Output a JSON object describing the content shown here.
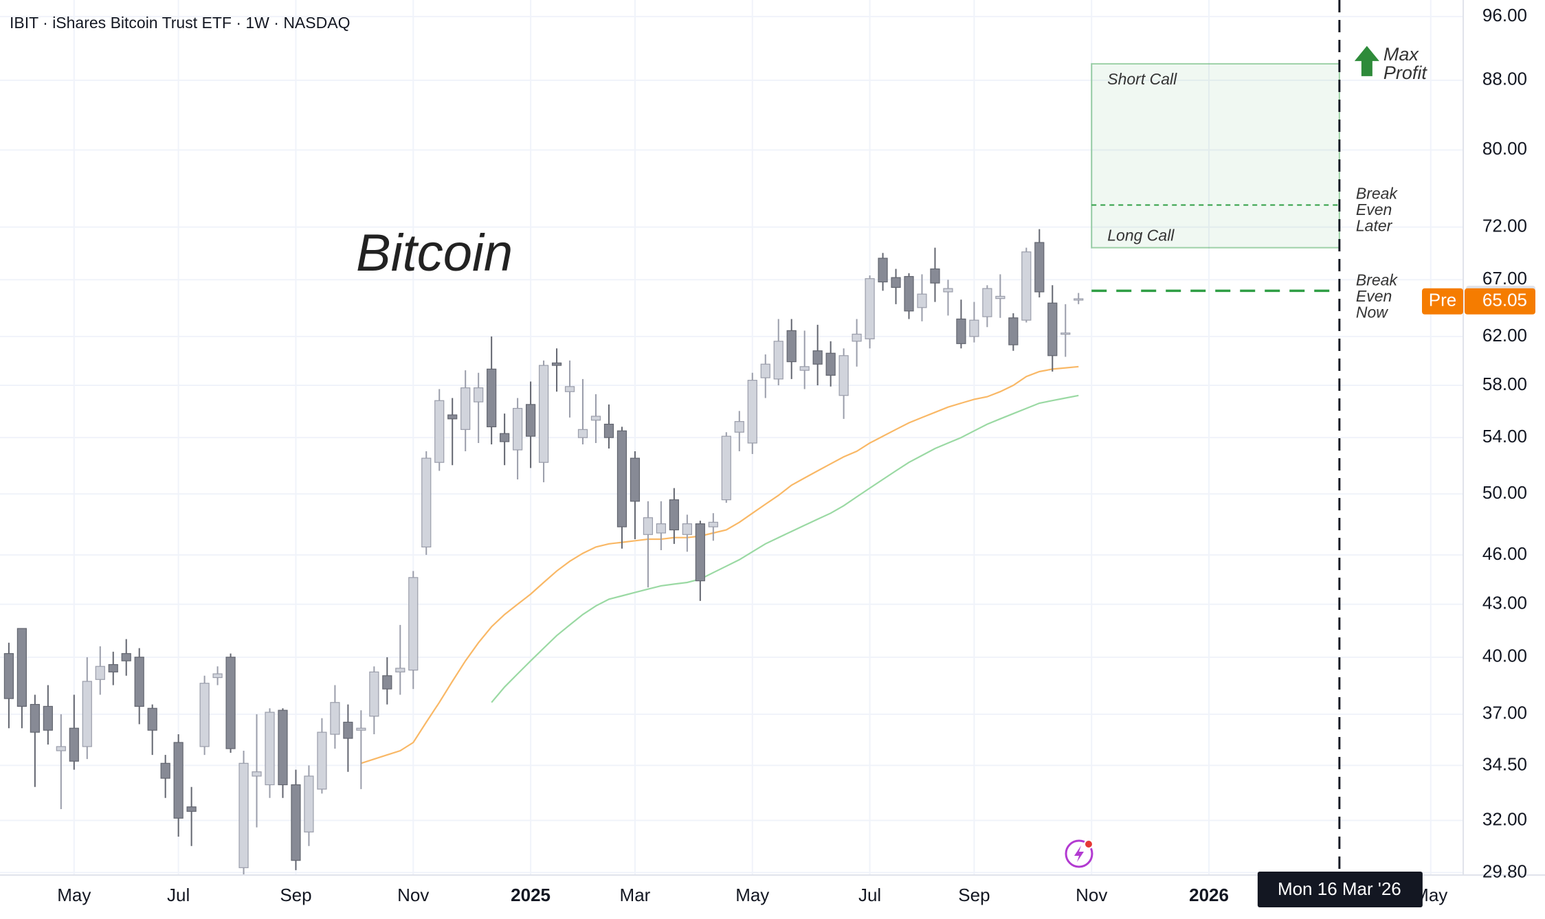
{
  "chart_data": {
    "type": "candlestick",
    "title": "IBIT · iShares Bitcoin Trust ETF · 1W · NASDAQ",
    "annotation": "Bitcoin",
    "log_scale": true,
    "grid": true,
    "up_color": "#d1d4dc",
    "down_color": "#878a95",
    "categories": [
      null,
      null,
      null,
      null,
      null,
      "May",
      null,
      null,
      null,
      null,
      null,
      null,
      null,
      "Jul",
      null,
      null,
      null,
      null,
      null,
      null,
      null,
      null,
      "Sep",
      null,
      null,
      null,
      null,
      null,
      null,
      null,
      null,
      "Nov",
      null,
      null,
      null,
      null,
      null,
      null,
      null,
      null,
      "2025",
      null,
      null,
      null,
      null,
      null,
      null,
      null,
      "Mar",
      null,
      null,
      null,
      null,
      null,
      null,
      null,
      null,
      "May",
      null,
      null,
      null,
      null,
      null,
      null,
      null,
      null,
      "Jul",
      null,
      null,
      null,
      null,
      null,
      null,
      null,
      "Sep",
      null,
      null,
      null,
      null,
      null,
      null,
      null,
      null,
      "Nov",
      null,
      null,
      null,
      null,
      null,
      null,
      null,
      null,
      "2026",
      null,
      null,
      null,
      null,
      null,
      null,
      null,
      null,
      null,
      null,
      null,
      null,
      null,
      null,
      null,
      null,
      "May",
      null,
      null
    ],
    "open": [
      40.2,
      41.6,
      37.5,
      37.4,
      35.2,
      36.3,
      35.4,
      38.8,
      39.6,
      40.2,
      40.0,
      37.3,
      34.6,
      35.6,
      32.6,
      35.4,
      38.9,
      40.0,
      30.0,
      34.0,
      33.6,
      37.2,
      33.6,
      31.5,
      33.4,
      36.0,
      36.6,
      36.2,
      36.9,
      39.0,
      39.2,
      39.3,
      46.5,
      52.2,
      55.7,
      54.6,
      56.7,
      59.3,
      54.3,
      53.1,
      56.5,
      52.2,
      59.8,
      57.5,
      54.0,
      55.3,
      55.0,
      54.5,
      52.5,
      47.3,
      47.4,
      49.6,
      47.3,
      48.0,
      47.8,
      49.6,
      54.4,
      53.6,
      58.6,
      58.5,
      62.5,
      59.2,
      60.8,
      60.6,
      57.2,
      61.6,
      61.8,
      69.0,
      67.2,
      67.3,
      64.5,
      68.0,
      65.9,
      63.5,
      62.0,
      63.7,
      65.3,
      63.6,
      63.4,
      70.5,
      64.9,
      62.2,
      65.2,
      null,
      null,
      null,
      null,
      null,
      null,
      null,
      null,
      null,
      null,
      null,
      null,
      null,
      null,
      null,
      null,
      null,
      null,
      null,
      null,
      null,
      null,
      null,
      null,
      null,
      null,
      null,
      null,
      null
    ],
    "high": [
      40.8,
      41.6,
      38.0,
      38.5,
      37.0,
      38.0,
      40.0,
      40.6,
      40.3,
      41.0,
      40.5,
      37.5,
      35.0,
      36.0,
      33.5,
      39.0,
      39.5,
      40.2,
      35.2,
      37.0,
      37.3,
      37.3,
      34.3,
      34.5,
      36.8,
      38.5,
      37.5,
      37.2,
      39.5,
      40.0,
      41.8,
      45.0,
      53.0,
      57.7,
      57.0,
      59.2,
      59.0,
      62.0,
      55.8,
      57.0,
      58.3,
      60.0,
      61.0,
      60.0,
      58.5,
      57.3,
      56.5,
      54.8,
      53.0,
      49.5,
      49.5,
      50.4,
      48.6,
      48.2,
      48.7,
      54.4,
      56.0,
      59.0,
      60.5,
      63.5,
      63.5,
      62.5,
      63.0,
      61.6,
      61.0,
      63.5,
      67.4,
      69.5,
      68.0,
      67.6,
      67.5,
      70.0,
      67.0,
      65.2,
      65.0,
      66.5,
      67.5,
      64.0,
      70.0,
      71.8,
      66.5,
      64.8,
      65.8,
      null,
      null,
      null,
      null,
      null,
      null,
      null,
      null,
      null,
      null,
      null,
      null,
      null,
      null,
      null,
      null,
      null,
      null,
      null,
      null,
      null,
      null,
      null,
      null,
      null,
      null,
      null,
      null,
      null
    ],
    "low": [
      36.3,
      36.3,
      33.5,
      35.5,
      32.5,
      34.3,
      34.8,
      38.0,
      38.5,
      39.0,
      36.5,
      35.0,
      33.0,
      31.3,
      30.9,
      35.0,
      38.5,
      35.1,
      29.5,
      31.7,
      33.0,
      33.0,
      29.9,
      30.9,
      33.2,
      35.3,
      34.2,
      33.4,
      36.0,
      37.5,
      38.0,
      38.3,
      46.0,
      51.6,
      52.0,
      53.0,
      53.6,
      53.5,
      52.0,
      51.0,
      51.8,
      50.8,
      57.5,
      55.5,
      53.5,
      53.6,
      53.2,
      46.4,
      47.0,
      44.0,
      46.3,
      46.7,
      46.2,
      43.2,
      46.9,
      49.4,
      53.0,
      52.8,
      57.0,
      58.0,
      58.5,
      57.7,
      58.0,
      57.9,
      55.4,
      59.5,
      61.0,
      66.0,
      64.8,
      63.5,
      63.3,
      65.0,
      63.8,
      61.0,
      61.5,
      62.8,
      63.6,
      60.8,
      63.2,
      65.4,
      59.1,
      60.3,
      64.8,
      null,
      null,
      null,
      null,
      null,
      null,
      null,
      null,
      null,
      null,
      null,
      null,
      null,
      null,
      null,
      null,
      null,
      null,
      null,
      null,
      null,
      null,
      null,
      null,
      null,
      null,
      null,
      null,
      null
    ],
    "close": [
      37.8,
      37.4,
      36.1,
      36.2,
      35.4,
      34.7,
      38.7,
      39.5,
      39.2,
      39.8,
      37.4,
      36.2,
      33.9,
      32.1,
      32.4,
      38.6,
      39.1,
      35.3,
      34.6,
      34.2,
      37.1,
      33.6,
      30.3,
      34.0,
      36.1,
      37.6,
      35.8,
      36.3,
      39.2,
      38.3,
      39.4,
      44.6,
      52.5,
      56.8,
      55.4,
      57.8,
      57.8,
      54.8,
      53.7,
      56.2,
      54.1,
      59.6,
      59.6,
      57.9,
      54.6,
      55.6,
      54.0,
      47.8,
      49.5,
      48.4,
      48.0,
      47.6,
      48.0,
      44.4,
      48.1,
      54.1,
      55.2,
      58.4,
      59.7,
      61.6,
      59.9,
      59.5,
      59.7,
      58.8,
      60.4,
      62.2,
      67.1,
      66.8,
      66.3,
      64.2,
      65.7,
      66.7,
      66.2,
      61.4,
      63.4,
      66.2,
      65.5,
      61.3,
      69.6,
      65.9,
      60.4,
      62.3,
      65.28,
      null,
      null,
      null,
      null,
      null,
      null,
      null,
      null,
      null,
      null,
      null,
      null,
      null,
      null,
      null,
      null,
      null,
      null,
      null,
      null,
      null,
      null,
      null,
      null,
      null,
      null,
      null,
      null,
      null
    ],
    "moving_averages": [
      {
        "color": "#f9b866",
        "values": [
          null,
          null,
          null,
          null,
          null,
          null,
          null,
          null,
          null,
          null,
          null,
          null,
          null,
          null,
          null,
          null,
          null,
          null,
          null,
          null,
          null,
          null,
          null,
          null,
          null,
          null,
          null,
          34.6,
          34.8,
          35.0,
          35.2,
          35.6,
          36.6,
          37.6,
          38.7,
          39.8,
          40.8,
          41.7,
          42.4,
          43.0,
          43.6,
          44.3,
          45.0,
          45.6,
          46.1,
          46.5,
          46.7,
          46.8,
          46.9,
          47.0,
          47.0,
          47.1,
          47.1,
          47.2,
          47.4,
          47.6,
          48.1,
          48.7,
          49.3,
          49.9,
          50.6,
          51.1,
          51.6,
          52.1,
          52.6,
          53.0,
          53.6,
          54.1,
          54.6,
          55.1,
          55.5,
          55.9,
          56.3,
          56.6,
          56.9,
          57.1,
          57.5,
          58.0,
          58.7,
          59.1,
          59.3,
          59.4,
          59.5,
          null,
          null,
          null,
          null,
          null,
          null,
          null,
          null,
          null,
          null,
          null,
          null,
          null,
          null,
          null,
          null,
          null,
          null,
          null,
          null,
          null,
          null,
          null,
          null,
          null,
          null,
          null,
          null,
          null
        ]
      },
      {
        "color": "#9ad9a3",
        "values": [
          null,
          null,
          null,
          null,
          null,
          null,
          null,
          null,
          null,
          null,
          null,
          null,
          null,
          null,
          null,
          null,
          null,
          null,
          null,
          null,
          null,
          null,
          null,
          null,
          null,
          null,
          null,
          null,
          null,
          null,
          null,
          null,
          null,
          null,
          null,
          null,
          null,
          37.6,
          38.4,
          39.1,
          39.8,
          40.5,
          41.2,
          41.8,
          42.4,
          42.9,
          43.3,
          43.5,
          43.7,
          43.9,
          44.1,
          44.2,
          44.3,
          44.5,
          44.9,
          45.3,
          45.7,
          46.2,
          46.7,
          47.1,
          47.5,
          47.9,
          48.3,
          48.7,
          49.2,
          49.8,
          50.4,
          51.0,
          51.6,
          52.2,
          52.7,
          53.2,
          53.6,
          54.0,
          54.5,
          55.0,
          55.4,
          55.8,
          56.2,
          56.6,
          56.8,
          57.0,
          57.2,
          null,
          null,
          null,
          null,
          null,
          null,
          null,
          null,
          null,
          null,
          null,
          null,
          null,
          null,
          null,
          null,
          null,
          null,
          null,
          null,
          null,
          null,
          null,
          null,
          null,
          null,
          null,
          null,
          null
        ]
      }
    ],
    "ylim": [
      29.7,
      98.2
    ],
    "yticks": [
      {
        "value": 96,
        "label": "96.00"
      },
      {
        "value": 88,
        "label": "88.00"
      },
      {
        "value": 80,
        "label": "80.00"
      },
      {
        "value": 72,
        "label": "72.00"
      },
      {
        "value": 67,
        "label": "67.00"
      },
      {
        "value": 62,
        "label": "62.00"
      },
      {
        "value": 58,
        "label": "58.00"
      },
      {
        "value": 54,
        "label": "54.00"
      },
      {
        "value": 50,
        "label": "50.00"
      },
      {
        "value": 46,
        "label": "46.00"
      },
      {
        "value": 43,
        "label": "43.00"
      },
      {
        "value": 40,
        "label": "40.00"
      },
      {
        "value": 37,
        "label": "37.00"
      },
      {
        "value": 34.5,
        "label": "34.50"
      },
      {
        "value": 32,
        "label": "32.00"
      },
      {
        "value": 29.8,
        "label": "29.80"
      }
    ],
    "short_call": {
      "label": "Short Call",
      "value": 90
    },
    "long_call": {
      "label": "Long Call",
      "value": 70
    },
    "break_even_later": {
      "label_lines": [
        "Break",
        "Even",
        "Later"
      ],
      "value": 74.2
    },
    "break_even_now": {
      "label_lines": [
        "Break",
        "Even",
        "Now"
      ],
      "value": 66
    },
    "max_profit": [
      "Max",
      "Profit"
    ],
    "zone_color": "#2e9e44",
    "last_price": 65.28,
    "premarket": {
      "label": "Pre",
      "value": 65.05,
      "color": "#f57c00"
    },
    "crosshair_label": "Mon 16 Mar '26"
  }
}
